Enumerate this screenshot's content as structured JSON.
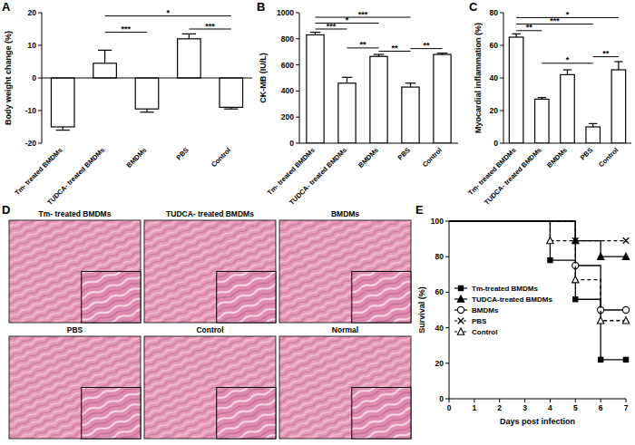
{
  "panels": {
    "labels": [
      "A",
      "B",
      "C",
      "D",
      "E"
    ]
  },
  "chart_data": [
    {
      "type": "bar",
      "ylabel": "Body weight change (%)",
      "categories": [
        "Tm- treated BMDMs",
        "TUDCA- treated BMDMs",
        "BMDMs",
        "PBS",
        "Control"
      ],
      "values": [
        -15,
        4.5,
        -9.5,
        12,
        -9
      ],
      "errors": [
        1,
        4,
        1,
        1.5,
        0.5
      ],
      "color": "#ffffff",
      "ylim": [
        -20,
        20
      ],
      "yticks": [
        -20,
        -10,
        0,
        10,
        20
      ],
      "annotations": [
        {
          "between": [
            1,
            4
          ],
          "y": 19,
          "label": "*"
        },
        {
          "between": [
            1,
            2
          ],
          "y": 14,
          "label": "***"
        },
        {
          "between": [
            3,
            4
          ],
          "y": 15,
          "label": "***"
        }
      ]
    },
    {
      "type": "bar",
      "ylabel": "CK-MB (IU/L)",
      "categories": [
        "Tm- treated BMDMs",
        "TUDCA- treated BMDMs",
        "BMDMs",
        "PBS",
        "Control"
      ],
      "values": [
        830,
        460,
        665,
        430,
        680
      ],
      "errors": [
        20,
        45,
        15,
        30,
        10
      ],
      "color": "#ffffff",
      "ylim": [
        0,
        1000
      ],
      "yticks": [
        0,
        200,
        400,
        600,
        800,
        1000
      ],
      "annotations": [
        {
          "between": [
            0,
            1
          ],
          "y": 875,
          "label": "***"
        },
        {
          "between": [
            0,
            2
          ],
          "y": 920,
          "label": "*"
        },
        {
          "between": [
            0,
            3
          ],
          "y": 965,
          "label": "***"
        },
        {
          "between": [
            1,
            2
          ],
          "y": 730,
          "label": "**"
        },
        {
          "between": [
            2,
            3
          ],
          "y": 705,
          "label": "**"
        },
        {
          "between": [
            3,
            4
          ],
          "y": 725,
          "label": "**"
        }
      ]
    },
    {
      "type": "bar",
      "ylabel": "Myocardial inflammation (%)",
      "categories": [
        "Tm- treated BMDMs",
        "TUDCA- treated BMDMs",
        "BMDMs",
        "PBS",
        "Control"
      ],
      "values": [
        65,
        27,
        42,
        10,
        45
      ],
      "errors": [
        2,
        1,
        3,
        2,
        5
      ],
      "color": "#ffffff",
      "ylim": [
        0,
        80
      ],
      "yticks": [
        0,
        20,
        40,
        60,
        80
      ],
      "annotations": [
        {
          "between": [
            0,
            1
          ],
          "y": 69,
          "label": "**"
        },
        {
          "between": [
            0,
            3
          ],
          "y": 73,
          "label": "***"
        },
        {
          "between": [
            0,
            4
          ],
          "y": 77,
          "label": "*"
        },
        {
          "between": [
            1,
            3
          ],
          "y": 49,
          "label": "*"
        },
        {
          "between": [
            3,
            4
          ],
          "y": 53,
          "label": "**"
        }
      ]
    },
    {
      "type": "line",
      "xlabel": "Days post infection",
      "ylabel": "Survival (%)",
      "x": [
        0,
        1,
        2,
        3,
        4,
        5,
        6,
        7
      ],
      "xlim": [
        0,
        7
      ],
      "xticks": [
        0,
        1,
        2,
        3,
        4,
        5,
        6,
        7
      ],
      "ylim": [
        0,
        100
      ],
      "yticks": [
        0,
        20,
        40,
        60,
        80,
        100
      ],
      "legend": "center left",
      "series": [
        {
          "name": "Tm-treated BMDMs",
          "color": "#000000",
          "marker": "square",
          "line_style": "solid",
          "values": [
            100,
            100,
            100,
            100,
            78,
            56,
            22,
            22
          ]
        },
        {
          "name": "TUDCA-treated BMDMs",
          "color": "#000000",
          "marker": "triangle",
          "line_style": "solid",
          "values": [
            100,
            100,
            100,
            100,
            100,
            89,
            80,
            80
          ]
        },
        {
          "name": "BMDMs",
          "color": "#000000",
          "marker": "circle-open",
          "line_style": "solid",
          "values": [
            100,
            100,
            100,
            100,
            100,
            75,
            50,
            50
          ]
        },
        {
          "name": "PBS",
          "color": "#000000",
          "marker": "x",
          "line_style": "dashed",
          "values": [
            100,
            100,
            100,
            100,
            100,
            89,
            89,
            89
          ]
        },
        {
          "name": "Control",
          "color": "#000000",
          "marker": "triangle-open",
          "line_style": "dashed",
          "values": [
            100,
            100,
            100,
            100,
            89,
            67,
            44,
            44
          ]
        }
      ]
    }
  ],
  "histology": {
    "titles": [
      "Tm- treated BMDMs",
      "TUDCA- treated BMDMs",
      "BMDMs",
      "PBS",
      "Control",
      "Normal"
    ]
  }
}
